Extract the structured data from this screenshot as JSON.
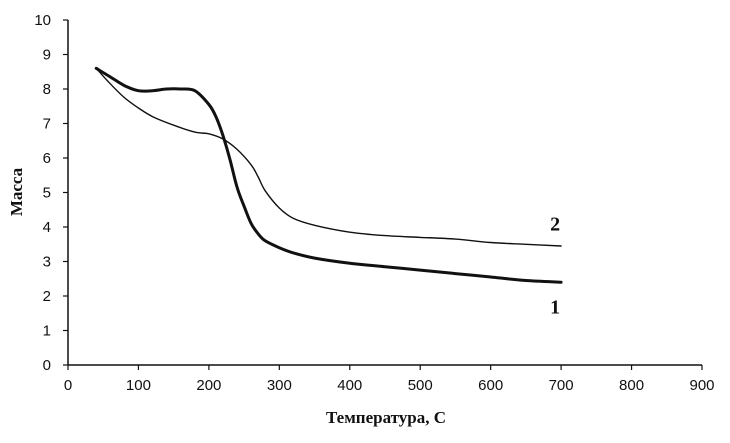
{
  "chart_data": {
    "type": "line",
    "title": "",
    "xlabel": "Температура, С",
    "ylabel": "Масса",
    "xlim": [
      0,
      900
    ],
    "ylim": [
      0,
      10
    ],
    "x_ticks": [
      "0",
      "100",
      "200",
      "300",
      "400",
      "500",
      "600",
      "700",
      "800",
      "900"
    ],
    "y_ticks": [
      "0",
      "1",
      "2",
      "3",
      "4",
      "5",
      "6",
      "7",
      "8",
      "9",
      "10"
    ],
    "grid": false,
    "legend": "none",
    "series": [
      {
        "name": "1",
        "color": "#111111",
        "x": [
          40,
          60,
          80,
          100,
          120,
          140,
          160,
          180,
          200,
          210,
          220,
          230,
          240,
          250,
          260,
          270,
          280,
          300,
          320,
          350,
          400,
          450,
          500,
          550,
          600,
          650,
          700
        ],
        "y": [
          8.6,
          8.35,
          8.1,
          7.95,
          7.95,
          8.0,
          8.0,
          7.95,
          7.55,
          7.2,
          6.65,
          5.95,
          5.15,
          4.6,
          4.1,
          3.8,
          3.6,
          3.4,
          3.25,
          3.1,
          2.95,
          2.85,
          2.75,
          2.65,
          2.55,
          2.45,
          2.4
        ]
      },
      {
        "name": "2",
        "color": "#111111",
        "x": [
          40,
          60,
          80,
          100,
          120,
          150,
          180,
          200,
          220,
          240,
          260,
          270,
          280,
          300,
          320,
          350,
          400,
          450,
          500,
          550,
          600,
          650,
          700
        ],
        "y": [
          8.6,
          8.15,
          7.75,
          7.45,
          7.2,
          6.95,
          6.75,
          6.7,
          6.55,
          6.25,
          5.8,
          5.45,
          5.05,
          4.55,
          4.25,
          4.05,
          3.85,
          3.75,
          3.7,
          3.65,
          3.55,
          3.5,
          3.45
        ]
      }
    ],
    "annotations": [
      {
        "text": "2",
        "x": 690,
        "y": 4.1
      },
      {
        "text": "1",
        "x": 690,
        "y": 1.7
      }
    ]
  }
}
